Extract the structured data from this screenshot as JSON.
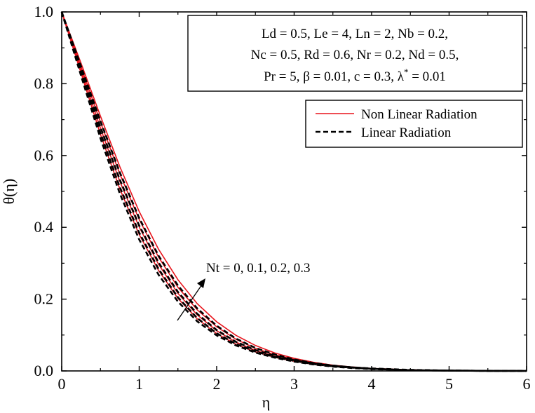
{
  "chart_data": {
    "type": "line",
    "title": "",
    "xlabel": "η",
    "ylabel": "θ(η)",
    "xlim": [
      0,
      6
    ],
    "ylim": [
      0,
      1.0
    ],
    "xticks": [
      "0",
      "1",
      "2",
      "3",
      "4",
      "5",
      "6"
    ],
    "yticks": [
      "0.0",
      "0.2",
      "0.4",
      "0.6",
      "0.8",
      "1.0"
    ],
    "grid": false,
    "legend_position": "upper-right",
    "parameters": [
      "Ld = 0.5, Le = 4, Ln = 2, Nb = 0.2,",
      "Nc = 0.5, Rd = 0.6, Nr = 0.2, Nd = 0.5,",
      "Pr = 5, β = 0.01, c = 0.3, λ",
      "*",
      " = 0.01"
    ],
    "legend": [
      {
        "label": "Non Linear Radiation",
        "color": "#e8141c",
        "dash": "solid"
      },
      {
        "label": "Linear Radiation",
        "color": "#000000",
        "dash": "dashed"
      }
    ],
    "annotation": "Nt = 0, 0.1, 0.2, 0.3",
    "x": [
      0,
      0.25,
      0.5,
      0.75,
      1.0,
      1.25,
      1.5,
      1.75,
      2.0,
      2.25,
      2.5,
      2.75,
      3.0,
      3.25,
      3.5,
      3.75,
      4.0,
      4.5,
      5.0,
      5.5,
      6.0
    ],
    "series": [
      {
        "group": "Non Linear Radiation",
        "values": [
          1.0,
          0.857,
          0.71,
          0.569,
          0.444,
          0.339,
          0.254,
          0.187,
          0.137,
          0.099,
          0.071,
          0.05,
          0.035,
          0.024,
          0.016,
          0.011,
          0.007,
          0.003,
          0.001,
          0.0003,
          0.0
        ]
      },
      {
        "group": "Non Linear Radiation",
        "values": [
          1.0,
          0.847,
          0.693,
          0.549,
          0.422,
          0.317,
          0.233,
          0.17,
          0.123,
          0.088,
          0.063,
          0.045,
          0.032,
          0.022,
          0.015,
          0.01,
          0.006,
          0.003,
          0.001,
          0.0003,
          0.0
        ]
      },
      {
        "group": "Non Linear Radiation",
        "values": [
          1.0,
          0.838,
          0.676,
          0.528,
          0.401,
          0.297,
          0.216,
          0.156,
          0.112,
          0.08,
          0.057,
          0.041,
          0.029,
          0.02,
          0.014,
          0.009,
          0.006,
          0.002,
          0.001,
          0.0002,
          0.0
        ]
      },
      {
        "group": "Non Linear Radiation",
        "values": [
          1.0,
          0.829,
          0.659,
          0.507,
          0.38,
          0.28,
          0.202,
          0.145,
          0.104,
          0.074,
          0.053,
          0.038,
          0.027,
          0.019,
          0.013,
          0.009,
          0.006,
          0.002,
          0.001,
          0.0002,
          0.0
        ]
      },
      {
        "group": "Linear Radiation",
        "values": [
          1.0,
          0.848,
          0.696,
          0.553,
          0.426,
          0.321,
          0.238,
          0.174,
          0.126,
          0.09,
          0.064,
          0.046,
          0.032,
          0.022,
          0.015,
          0.01,
          0.007,
          0.003,
          0.001,
          0.0003,
          0.0
        ]
      },
      {
        "group": "Linear Radiation",
        "values": [
          1.0,
          0.839,
          0.679,
          0.533,
          0.405,
          0.302,
          0.22,
          0.159,
          0.114,
          0.081,
          0.058,
          0.042,
          0.03,
          0.021,
          0.014,
          0.01,
          0.006,
          0.002,
          0.001,
          0.0002,
          0.0
        ]
      },
      {
        "group": "Linear Radiation",
        "values": [
          1.0,
          0.83,
          0.663,
          0.512,
          0.385,
          0.284,
          0.205,
          0.147,
          0.105,
          0.075,
          0.054,
          0.039,
          0.028,
          0.019,
          0.013,
          0.009,
          0.006,
          0.002,
          0.001,
          0.0002,
          0.0
        ]
      },
      {
        "group": "Linear Radiation",
        "values": [
          1.0,
          0.822,
          0.648,
          0.494,
          0.366,
          0.268,
          0.193,
          0.138,
          0.099,
          0.071,
          0.051,
          0.037,
          0.026,
          0.018,
          0.012,
          0.008,
          0.005,
          0.002,
          0.001,
          0.0002,
          0.0
        ]
      }
    ]
  }
}
